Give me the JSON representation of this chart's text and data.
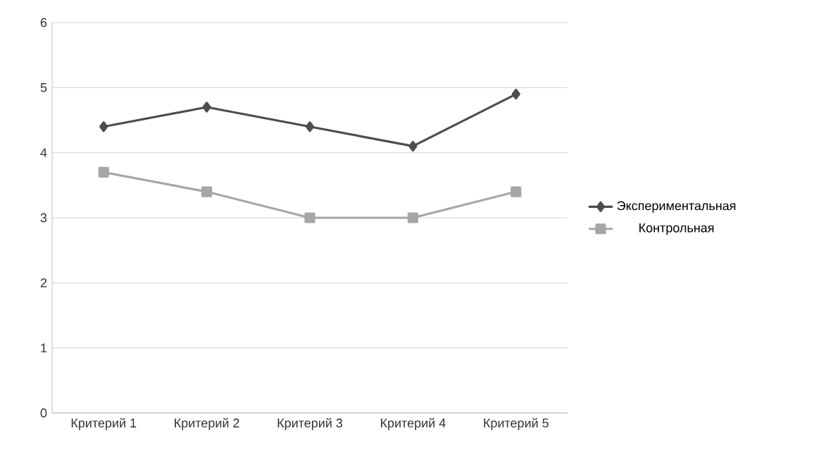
{
  "chart_data": {
    "type": "line",
    "categories": [
      "Критерий 1",
      "Критерий 2",
      "Критерий 3",
      "Критерий 4",
      "Критерий 5"
    ],
    "series": [
      {
        "name": "Экспериментальная",
        "color": "#4d4d4d",
        "marker": "diamond",
        "values": [
          4.4,
          4.7,
          4.4,
          4.1,
          4.9
        ]
      },
      {
        "name": "Контрольная",
        "color": "#a6a6a6",
        "marker": "square",
        "values": [
          3.7,
          3.4,
          3.0,
          3.0,
          3.4
        ]
      }
    ],
    "ylim": [
      0,
      6
    ],
    "yticks": [
      0,
      1,
      2,
      3,
      4,
      5,
      6
    ],
    "grid": "y",
    "legend": "right",
    "line_style": "solid"
  }
}
